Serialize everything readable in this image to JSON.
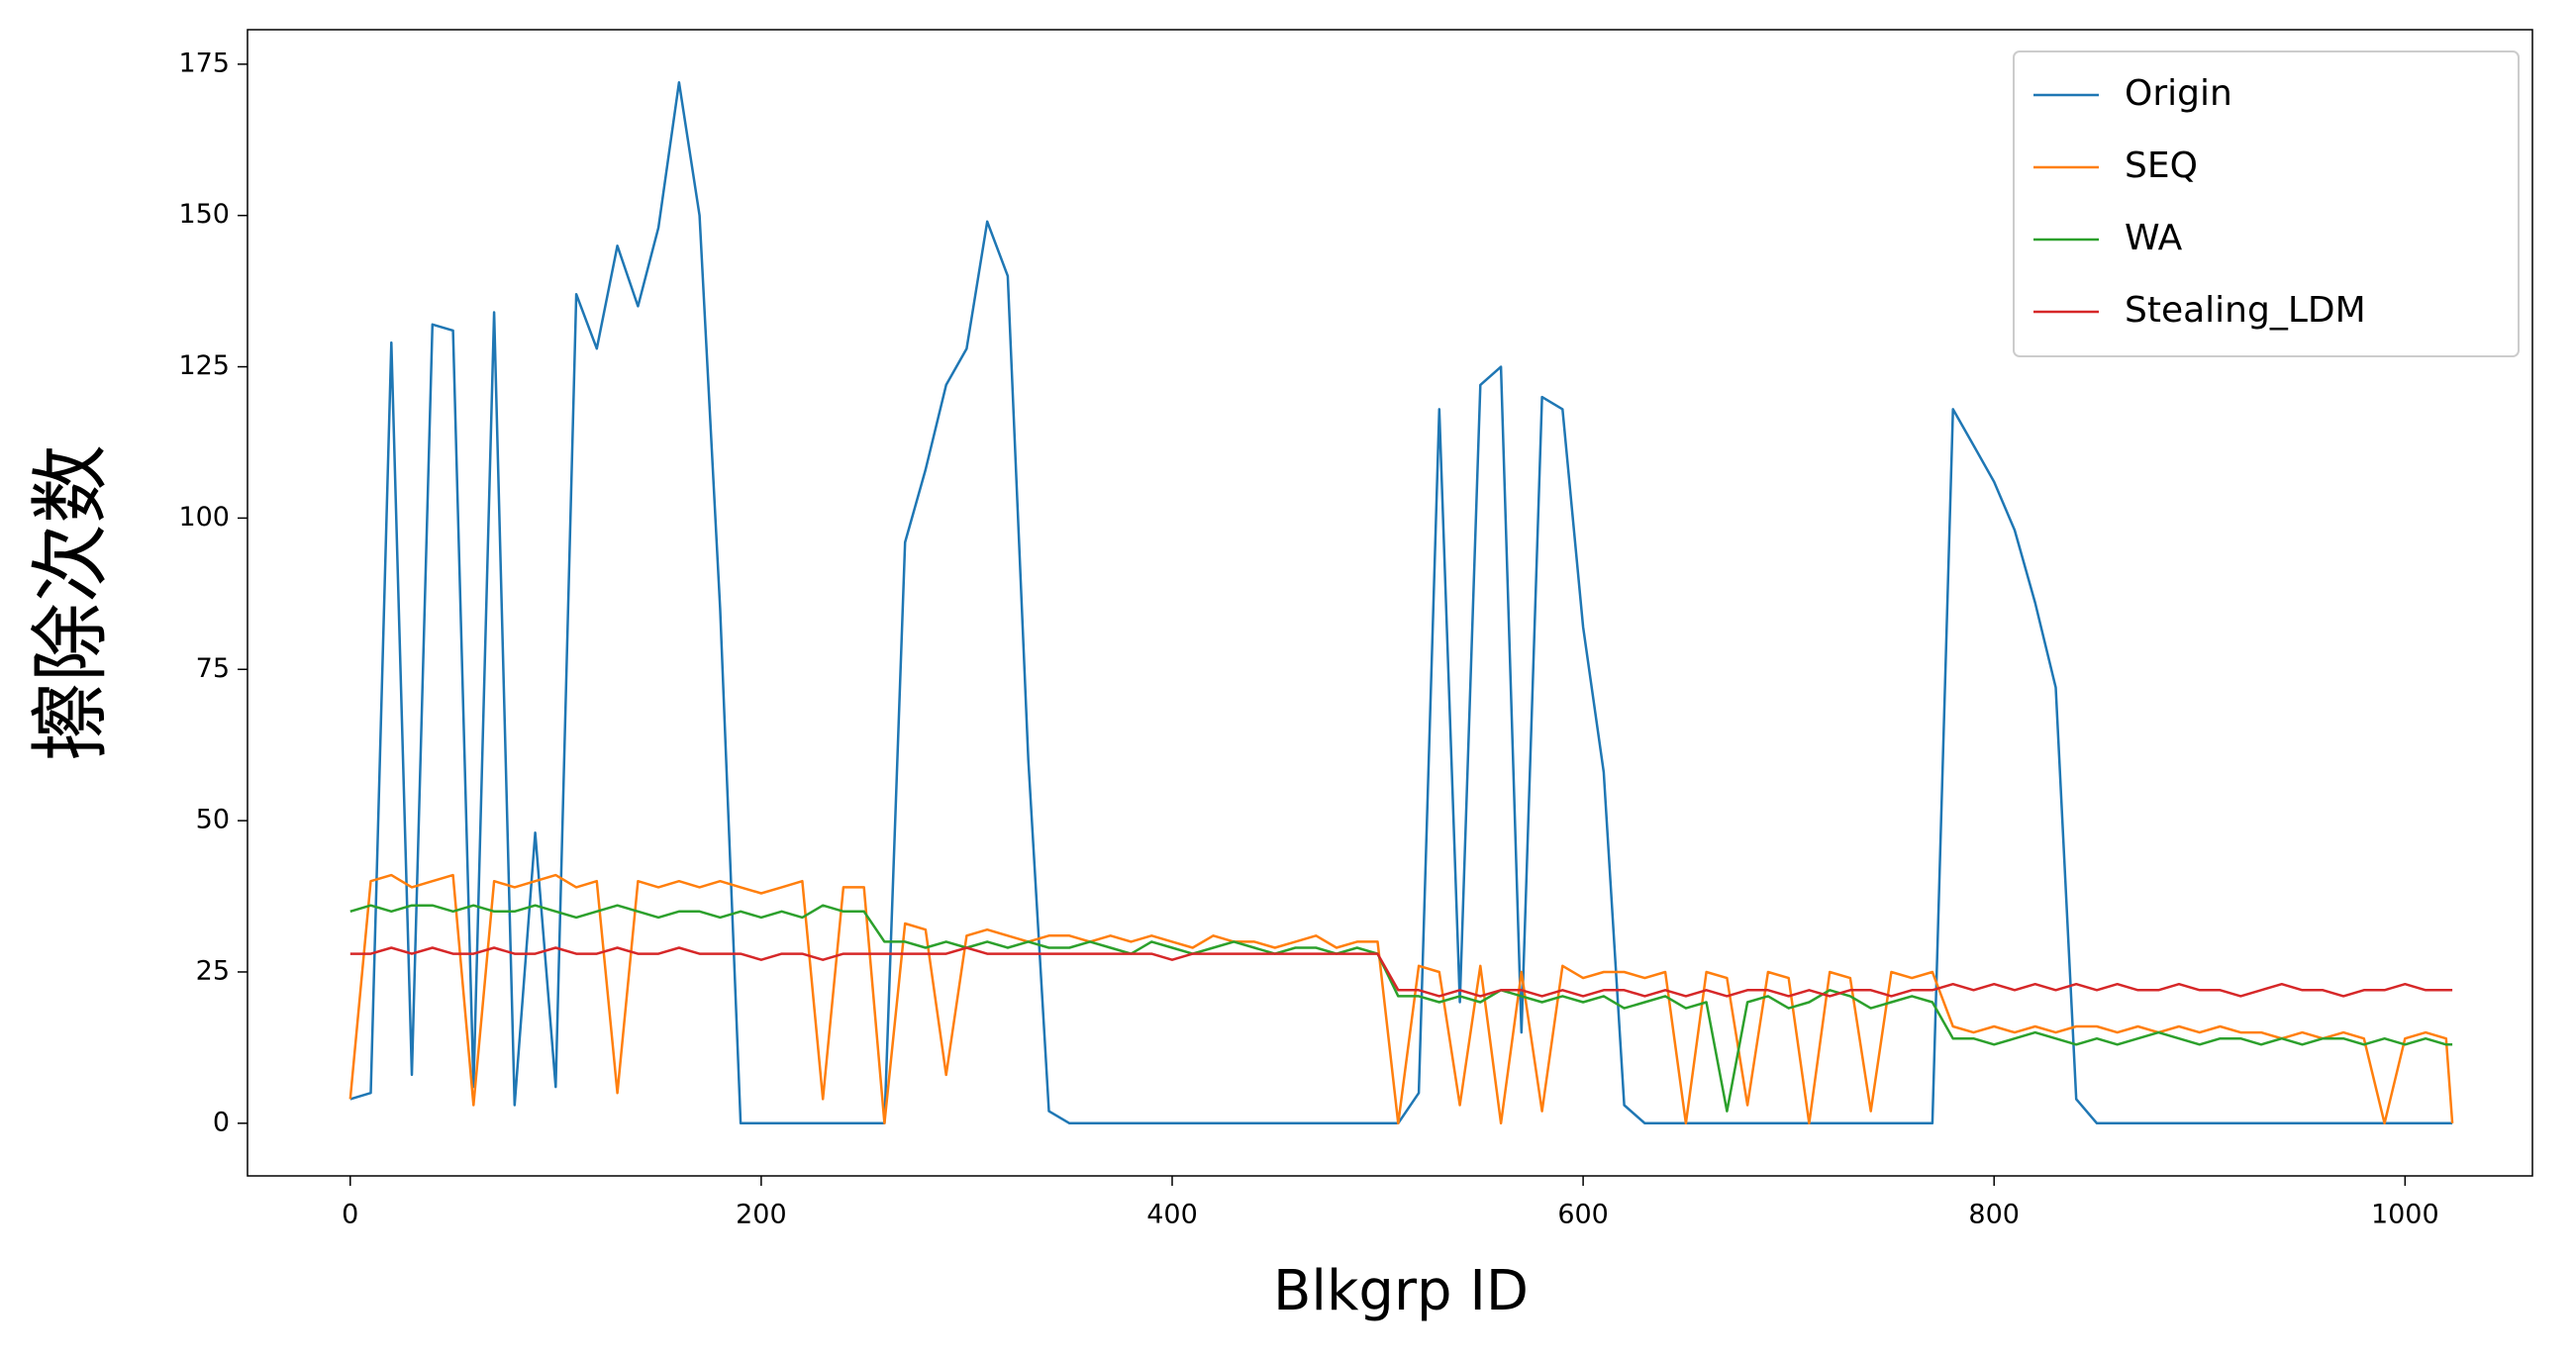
{
  "chart_data": {
    "type": "line",
    "xlabel": "Blkgrp ID",
    "ylabel": "擦除次数",
    "x": [
      0,
      10,
      20,
      30,
      40,
      50,
      60,
      70,
      80,
      90,
      100,
      110,
      120,
      130,
      140,
      150,
      160,
      170,
      180,
      190,
      200,
      210,
      220,
      230,
      240,
      250,
      260,
      270,
      280,
      290,
      300,
      310,
      320,
      330,
      340,
      350,
      360,
      370,
      380,
      390,
      400,
      410,
      420,
      430,
      440,
      450,
      460,
      470,
      480,
      490,
      500,
      510,
      520,
      530,
      540,
      550,
      560,
      570,
      580,
      590,
      600,
      610,
      620,
      630,
      640,
      650,
      660,
      670,
      680,
      690,
      700,
      710,
      720,
      730,
      740,
      750,
      760,
      770,
      780,
      790,
      800,
      810,
      820,
      830,
      840,
      850,
      860,
      870,
      880,
      890,
      900,
      910,
      920,
      930,
      940,
      950,
      960,
      970,
      980,
      990,
      1000,
      1010,
      1020,
      1023
    ],
    "series": [
      {
        "name": "Origin",
        "color": "#1f77b4",
        "values": [
          4,
          5,
          129,
          8,
          132,
          131,
          6,
          134,
          3,
          48,
          6,
          137,
          128,
          145,
          135,
          148,
          172,
          150,
          85,
          0,
          0,
          0,
          0,
          0,
          0,
          0,
          0,
          96,
          108,
          122,
          128,
          149,
          140,
          60,
          2,
          0,
          0,
          0,
          0,
          0,
          0,
          0,
          0,
          0,
          0,
          0,
          0,
          0,
          0,
          0,
          0,
          0,
          5,
          118,
          20,
          122,
          125,
          15,
          120,
          118,
          82,
          58,
          3,
          0,
          0,
          0,
          0,
          0,
          0,
          0,
          0,
          0,
          0,
          0,
          0,
          0,
          0,
          0,
          118,
          112,
          106,
          98,
          86,
          72,
          4,
          0,
          0,
          0,
          0,
          0,
          0,
          0,
          0,
          0,
          0,
          0,
          0,
          0,
          0,
          0,
          0,
          0,
          0,
          0
        ]
      },
      {
        "name": "SEQ",
        "color": "#ff7f0e",
        "values": [
          4,
          40,
          41,
          39,
          40,
          41,
          3,
          40,
          39,
          40,
          41,
          39,
          40,
          5,
          40,
          39,
          40,
          39,
          40,
          39,
          38,
          39,
          40,
          4,
          39,
          39,
          0,
          33,
          32,
          8,
          31,
          32,
          31,
          30,
          31,
          31,
          30,
          31,
          30,
          31,
          30,
          29,
          31,
          30,
          30,
          29,
          30,
          31,
          29,
          30,
          30,
          0,
          26,
          25,
          3,
          26,
          0,
          25,
          2,
          26,
          24,
          25,
          25,
          24,
          25,
          0,
          25,
          24,
          3,
          25,
          24,
          0,
          25,
          24,
          2,
          25,
          24,
          25,
          16,
          15,
          16,
          15,
          16,
          15,
          16,
          16,
          15,
          16,
          15,
          16,
          15,
          16,
          15,
          15,
          14,
          15,
          14,
          15,
          14,
          0,
          14,
          15,
          14,
          0
        ]
      },
      {
        "name": "WA",
        "color": "#2ca02c",
        "values": [
          35,
          36,
          35,
          36,
          36,
          35,
          36,
          35,
          35,
          36,
          35,
          34,
          35,
          36,
          35,
          34,
          35,
          35,
          34,
          35,
          34,
          35,
          34,
          36,
          35,
          35,
          30,
          30,
          29,
          30,
          29,
          30,
          29,
          30,
          29,
          29,
          30,
          29,
          28,
          30,
          29,
          28,
          29,
          30,
          29,
          28,
          29,
          29,
          28,
          29,
          28,
          21,
          21,
          20,
          21,
          20,
          22,
          21,
          20,
          21,
          20,
          21,
          19,
          20,
          21,
          19,
          20,
          2,
          20,
          21,
          19,
          20,
          22,
          21,
          19,
          20,
          21,
          20,
          14,
          14,
          13,
          14,
          15,
          14,
          13,
          14,
          13,
          14,
          15,
          14,
          13,
          14,
          14,
          13,
          14,
          13,
          14,
          14,
          13,
          14,
          13,
          14,
          13,
          13
        ]
      },
      {
        "name": "Stealing_LDM",
        "color": "#d62728",
        "values": [
          28,
          28,
          29,
          28,
          29,
          28,
          28,
          29,
          28,
          28,
          29,
          28,
          28,
          29,
          28,
          28,
          29,
          28,
          28,
          28,
          27,
          28,
          28,
          27,
          28,
          28,
          28,
          28,
          28,
          28,
          29,
          28,
          28,
          28,
          28,
          28,
          28,
          28,
          28,
          28,
          27,
          28,
          28,
          28,
          28,
          28,
          28,
          28,
          28,
          28,
          28,
          22,
          22,
          21,
          22,
          21,
          22,
          22,
          21,
          22,
          21,
          22,
          22,
          21,
          22,
          21,
          22,
          21,
          22,
          22,
          21,
          22,
          21,
          22,
          22,
          21,
          22,
          22,
          23,
          22,
          23,
          22,
          23,
          22,
          23,
          22,
          23,
          22,
          22,
          23,
          22,
          22,
          21,
          22,
          23,
          22,
          22,
          21,
          22,
          22,
          23,
          22,
          22,
          22
        ]
      }
    ],
    "xlim": [
      -50,
      1062
    ],
    "ylim": [
      -8.7,
      180.7
    ],
    "xticks": [
      0,
      200,
      400,
      600,
      800,
      1000
    ],
    "yticks": [
      0,
      25,
      50,
      75,
      100,
      125,
      150,
      175
    ],
    "legend": "upper right"
  }
}
